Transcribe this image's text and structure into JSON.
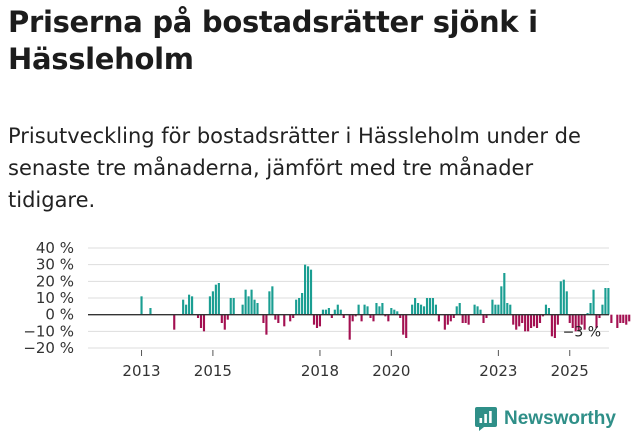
{
  "title": "Priserna på bostadsrätter sjönk i Hässleholm",
  "subtitle": "Prisutveckling för bostadsrätter i Hässleholm under de senaste tre månaderna, jämfört med tre månader tidigare.",
  "brand": "Newsworthy",
  "chart_data": {
    "type": "bar",
    "x_start": 2012.5,
    "x_step": 0.08333333,
    "x_range": [
      2011.5,
      2026.1
    ],
    "ylim": [
      -20,
      40
    ],
    "yticks": [
      -20,
      -10,
      0,
      10,
      20,
      30,
      40
    ],
    "ytick_labels": [
      "−20 %",
      "−10 %",
      "0 %",
      "10 %",
      "20 %",
      "30 %",
      "40 %"
    ],
    "xticks": [
      2013,
      2015,
      2018,
      2020,
      2023,
      2025
    ],
    "xtick_labels": [
      "2013",
      "2015",
      "2018",
      "2020",
      "2023",
      "2025"
    ],
    "positive_color": "#1a9e92",
    "negative_color": "#a31051",
    "zero_line_color": "#333333",
    "grid_color": "#dddddd",
    "last_label": "−3 %",
    "values": [
      0,
      0,
      0,
      0,
      0,
      0,
      11,
      0,
      0,
      4,
      0,
      0,
      0,
      0,
      0,
      0,
      0,
      -9,
      0,
      0,
      9,
      6,
      12,
      11,
      0,
      -2,
      -8,
      -10,
      0,
      11,
      14,
      18,
      19,
      -5,
      -9,
      -3,
      10,
      10,
      0,
      0,
      6,
      15,
      11,
      15,
      9,
      7,
      0,
      -5,
      -12,
      14,
      17,
      -3,
      -5,
      0,
      -7,
      0,
      -4,
      -2,
      9,
      10,
      13,
      30,
      29,
      27,
      -6,
      -8,
      -7,
      3,
      3,
      4,
      -2,
      3,
      6,
      3,
      -2,
      0,
      -15,
      -4,
      -1,
      6,
      -4,
      6,
      5,
      -2,
      -4,
      7,
      5,
      7,
      -1,
      -4,
      4,
      3,
      2,
      -2,
      -12,
      -14,
      0,
      6,
      10,
      7,
      6,
      5,
      10,
      10,
      10,
      6,
      -4,
      0,
      -9,
      -6,
      -4,
      -2,
      5,
      7,
      -5,
      -5,
      -6,
      0,
      6,
      5,
      3,
      -5,
      -2,
      0,
      9,
      6,
      6,
      17,
      25,
      7,
      6,
      -6,
      -9,
      -7,
      -5,
      -10,
      -10,
      -8,
      -7,
      -8,
      -5,
      -1,
      6,
      4,
      -13,
      -14,
      -6,
      20,
      21,
      14,
      -5,
      -8,
      -10,
      -10,
      -6,
      -9,
      1,
      7,
      15,
      -8,
      -2,
      6,
      16,
      16,
      -5,
      0,
      -8,
      -5,
      -5,
      -6,
      -4,
      -3
    ]
  }
}
